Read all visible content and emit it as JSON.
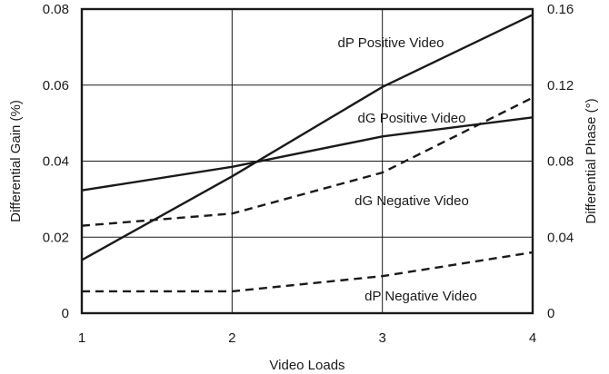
{
  "chart_data": {
    "type": "line",
    "x": [
      1,
      2,
      3,
      4
    ],
    "xlabel": "Video Loads",
    "xlim": [
      1,
      4
    ],
    "xticks": [
      "1",
      "2",
      "3",
      "4"
    ],
    "ylabel_left": "Differential Gain (%)",
    "ylim_left": [
      0,
      0.08
    ],
    "yticks_left": [
      "0",
      "0.02",
      "0.04",
      "0.06",
      "0.08"
    ],
    "ylabel_right": "Differential Phase (°)",
    "ylim_right": [
      0,
      0.16
    ],
    "yticks_right": [
      "0",
      "0.04",
      "0.08",
      "0.12",
      "0.16"
    ],
    "grid": true,
    "series": [
      {
        "name": "dP Positive Video",
        "axis": "right",
        "style": "solid",
        "values": [
          0.028,
          0.072,
          0.119,
          0.157
        ]
      },
      {
        "name": "dG Positive Video",
        "axis": "left",
        "style": "solid",
        "values": [
          0.0323,
          0.0385,
          0.0465,
          0.0515
        ]
      },
      {
        "name": "dG Negative Video",
        "axis": "left",
        "style": "dashed",
        "values": [
          0.023,
          0.0262,
          0.037,
          0.0567
        ]
      },
      {
        "name": "dP Negative Video",
        "axis": "right",
        "style": "dashed",
        "values": [
          0.0115,
          0.0115,
          0.0195,
          0.032
        ]
      }
    ]
  }
}
